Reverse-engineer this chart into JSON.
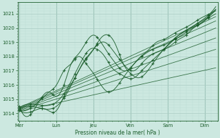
{
  "bg_color": "#cce8e0",
  "grid_major_color": "#aaccC4",
  "grid_minor_color": "#bbddd6",
  "line_color": "#1a5c2a",
  "xlabel": "Pression niveau de la mer( hPa )",
  "tick_color": "#1a5c2a",
  "spine_color": "#1a5c2a",
  "ylim": [
    1013.5,
    1021.8
  ],
  "yticks": [
    1014,
    1015,
    1016,
    1017,
    1018,
    1019,
    1020,
    1021
  ],
  "day_labels": [
    "Mer",
    "Lun",
    "Jeu",
    "Ven",
    "Sam",
    "Dim"
  ],
  "day_positions": [
    0,
    1,
    2,
    3,
    4,
    5
  ],
  "xlim": [
    -0.05,
    5.35
  ]
}
